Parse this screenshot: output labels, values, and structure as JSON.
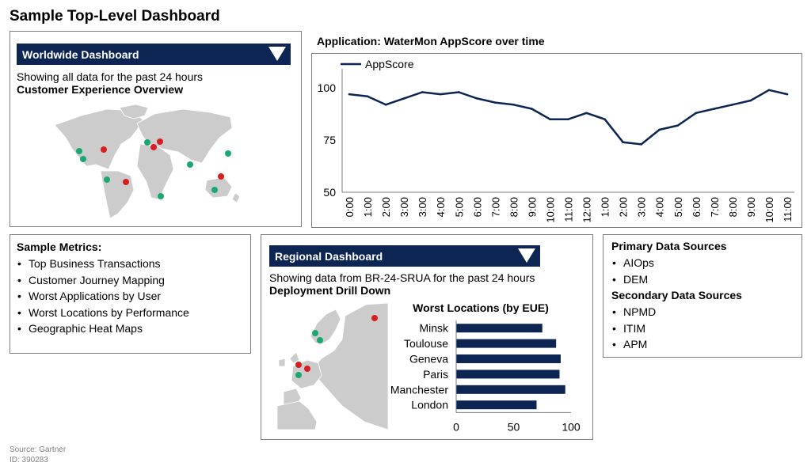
{
  "page_title": "Sample Top-Level Dashboard",
  "colors": {
    "navy": "#0d2553",
    "alert_red": "#d81e1e",
    "ok_green": "#1aa870",
    "land": "#cccccc",
    "border": "#7f7f7f"
  },
  "worldwide": {
    "header": "Worldwide Dashboard",
    "dropdown_icon": "triangle-down-icon",
    "subtitle": "Showing all data for the past 24 hours",
    "section_title": "Customer Experience Overview",
    "map_icon": "world-map"
  },
  "metrics": {
    "title": "Sample Metrics:",
    "items": [
      "Top Business Transactions",
      "Customer Journey Mapping",
      "Worst Applications by User",
      "Worst Locations by Performance",
      "Geographic Heat Maps"
    ]
  },
  "regional": {
    "header": "Regional Dashboard",
    "dropdown_icon": "triangle-down-icon",
    "subtitle": "Showing data from BR-24-SRUA for the past 24 hours",
    "section_title": "Deployment Drill Down",
    "map_icon": "europe-map"
  },
  "sources": {
    "primary_title": "Primary Data Sources",
    "primary_items": [
      "AIOps",
      "DEM"
    ],
    "secondary_title": "Secondary Data Sources",
    "secondary_items": [
      "NPMD",
      "ITIM",
      "APM"
    ]
  },
  "footer": {
    "source": "Source: Gartner",
    "id": "ID: 390283"
  },
  "chart_data": [
    {
      "type": "line",
      "title": "Application: WaterMon AppScore over time",
      "x": [
        "0:00",
        "1:00",
        "2:00",
        "3:00",
        "3:00",
        "4:00",
        "5:00",
        "6:00",
        "7:00",
        "8:00",
        "9:00",
        "10:00",
        "11:00",
        "12:00",
        "1:00",
        "2:00",
        "3:00",
        "4:00",
        "5:00",
        "6:00",
        "7:00",
        "8:00",
        "9:00",
        "10:00",
        "11:00"
      ],
      "series": [
        {
          "name": "AppScore",
          "values": [
            97,
            96,
            92,
            95,
            98,
            97,
            98,
            95,
            93,
            92,
            90,
            85,
            85,
            88,
            85,
            74,
            73,
            80,
            82,
            88,
            90,
            92,
            94,
            99,
            97
          ]
        }
      ],
      "yticks": [
        50,
        75,
        100
      ],
      "ylim": [
        50,
        105
      ],
      "legend": "top-left",
      "grid": false
    },
    {
      "type": "bar",
      "orientation": "horizontal",
      "title": "Worst Locations (by EUE)",
      "categories": [
        "Minsk",
        "Toulouse",
        "Geneva",
        "Paris",
        "Manchester",
        "London"
      ],
      "values": [
        75,
        87,
        91,
        90,
        95,
        70
      ],
      "xticks": [
        0,
        50,
        100
      ],
      "xlim": [
        0,
        100
      ],
      "grid": false
    }
  ]
}
